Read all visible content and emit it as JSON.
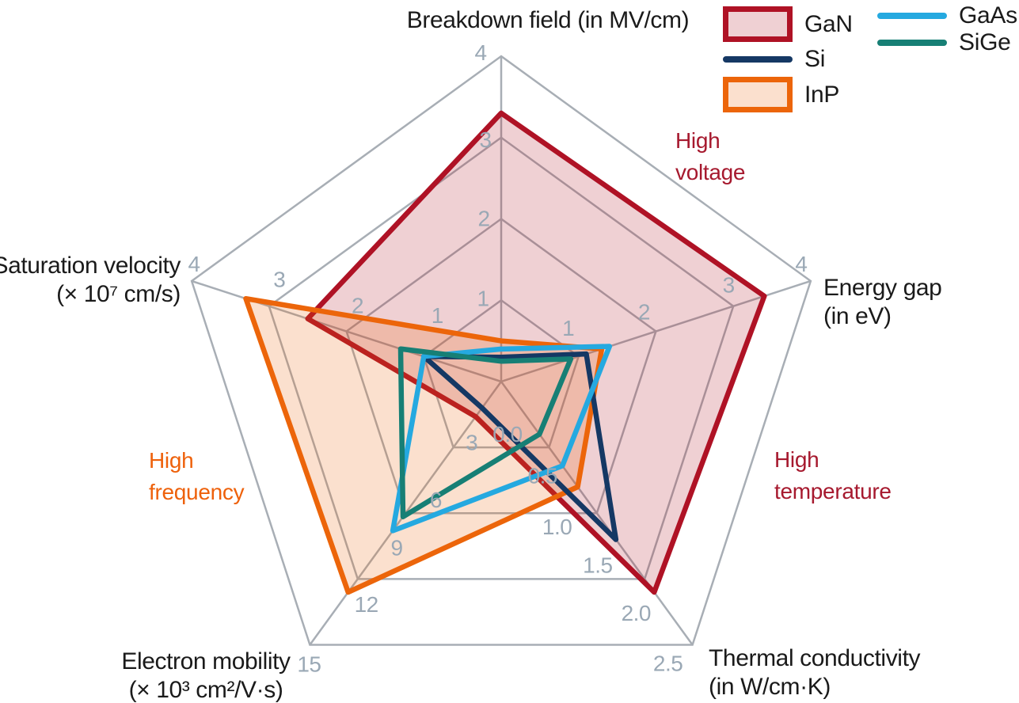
{
  "chart_data": {
    "type": "radar",
    "rings": 4,
    "grid_color": "#A8AEB5",
    "tick_label_color": "#9AA8B5",
    "axes": [
      {
        "key": "breakdown_field",
        "title_lines": [
          "Breakdown field (in MV/cm)"
        ],
        "max": 4,
        "ticks": [
          "1",
          "2",
          "3",
          "4"
        ],
        "tick_values": [
          1,
          2,
          3,
          4
        ]
      },
      {
        "key": "energy_gap",
        "title_lines": [
          "Energy gap",
          "(in eV)"
        ],
        "max": 4,
        "ticks": [
          "1",
          "2",
          "3",
          "4"
        ],
        "tick_values": [
          1,
          2,
          3,
          4
        ]
      },
      {
        "key": "thermal_conductivity",
        "title_lines": [
          "Thermal conductivity",
          "(in W/cm·K)"
        ],
        "max": 2.5,
        "ticks": [
          "0.0",
          "0.5",
          "1.0",
          "1.5",
          "2.0",
          "2.5"
        ],
        "tick_values": [
          0,
          0.5,
          1,
          1.5,
          2,
          2.5
        ]
      },
      {
        "key": "electron_mobility",
        "title_lines": [
          "Electron mobility",
          "(× 10³ cm²/V·s)"
        ],
        "max": 15,
        "ticks": [
          "3",
          "6",
          "9",
          "12",
          "15"
        ],
        "tick_values": [
          3,
          6,
          9,
          12,
          15
        ]
      },
      {
        "key": "saturation_velocity",
        "title_lines": [
          "Saturation velocity",
          "(× 10⁷ cm/s)"
        ],
        "max": 4,
        "ticks": [
          "1",
          "2",
          "3",
          "4"
        ],
        "tick_values": [
          1,
          2,
          3,
          4
        ]
      }
    ],
    "series": [
      {
        "name": "GaN",
        "color": "#AF1225",
        "style": "filled",
        "values": [
          3.3,
          3.4,
          2.0,
          2.0,
          2.5
        ]
      },
      {
        "name": "Si",
        "color": "#153864",
        "style": "line",
        "values": [
          0.3,
          1.1,
          1.5,
          1.5,
          1.0
        ]
      },
      {
        "name": "InP",
        "color": "#EC650A",
        "style": "filled",
        "values": [
          0.5,
          1.3,
          1.0,
          12,
          3.3
        ]
      },
      {
        "name": "GaAs",
        "color": "#25A9E0",
        "style": "line",
        "values": [
          0.4,
          1.4,
          0.8,
          8.5,
          1.0
        ]
      },
      {
        "name": "SiGe",
        "color": "#177F75",
        "style": "line",
        "values": [
          0.25,
          0.9,
          0.5,
          7.7,
          1.3
        ]
      }
    ],
    "annotations": [
      {
        "key": "high_voltage",
        "lines": [
          "High",
          "voltage"
        ],
        "color": "#A6192E"
      },
      {
        "key": "high_temperature",
        "lines": [
          "High",
          "temperature"
        ],
        "color": "#A6192E"
      },
      {
        "key": "high_frequency",
        "lines": [
          "High",
          "frequency"
        ],
        "color": "#EE610B"
      }
    ]
  },
  "legend": {
    "columns": [
      [
        "GaN",
        "Si",
        "InP"
      ],
      [
        "GaAs",
        "SiGe"
      ]
    ]
  }
}
